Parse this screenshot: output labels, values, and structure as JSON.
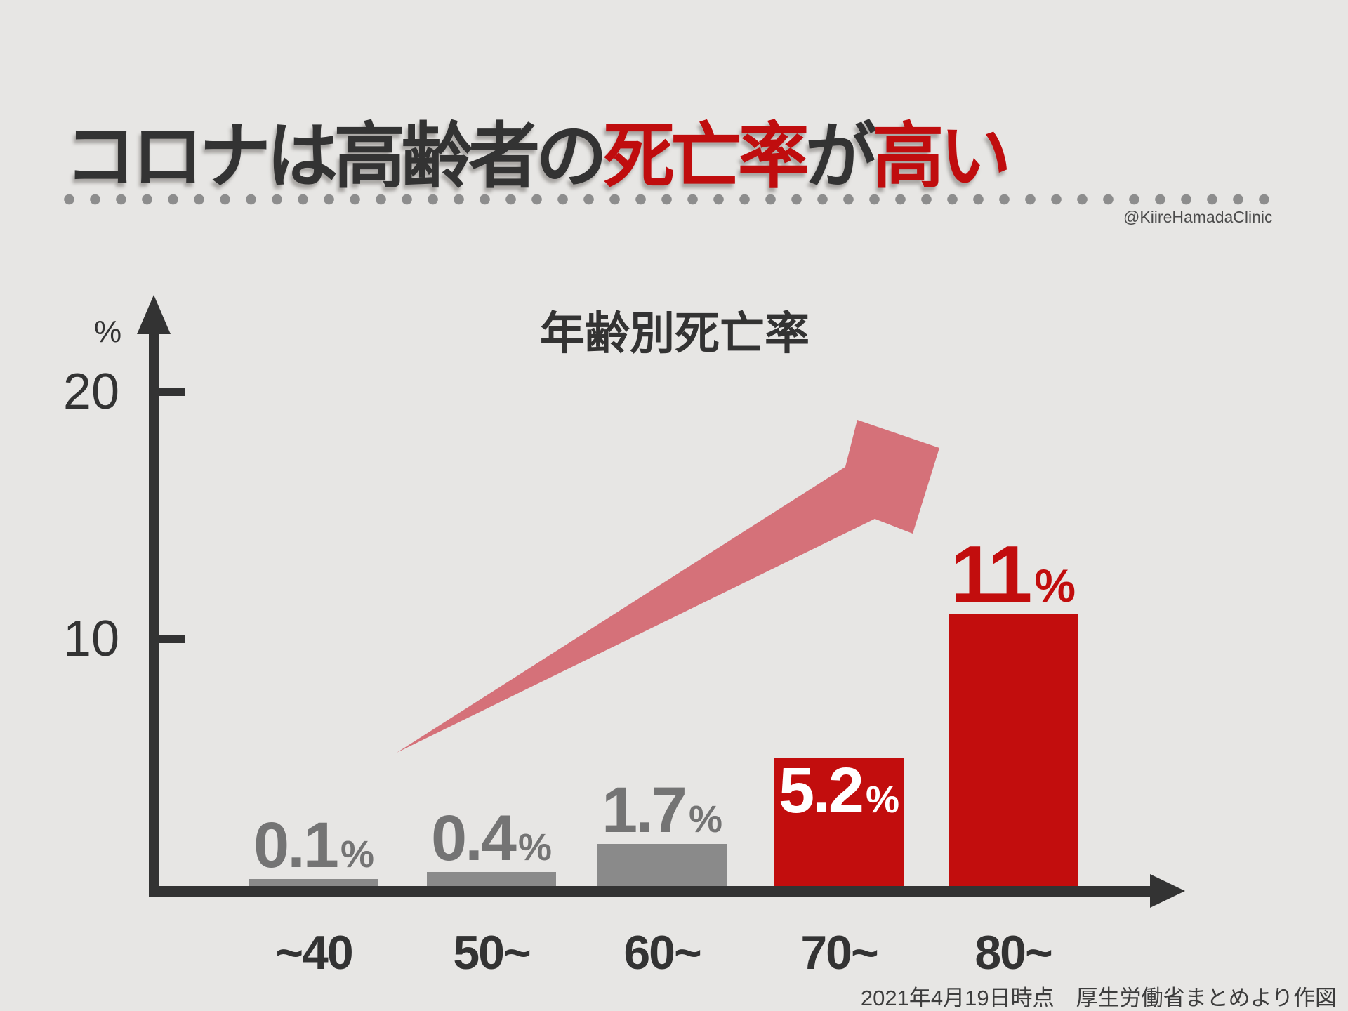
{
  "title": {
    "segments": [
      {
        "text": "コロナは",
        "color": "#333333"
      },
      {
        "text": "高齢者",
        "color": "#333333"
      },
      {
        "text": "の",
        "color": "#333333"
      },
      {
        "text": "死亡率",
        "color": "#c00d0e"
      },
      {
        "text": "が",
        "color": "#333333"
      },
      {
        "text": "高い",
        "color": "#c00d0e"
      }
    ]
  },
  "attribution": "@KiireHamadaClinic",
  "footer": "2021年4月19日時点　厚生労働省まとめより作図",
  "chart_data": {
    "type": "bar",
    "title": "年齢別死亡率",
    "xlabel": "",
    "ylabel": "%",
    "unit": "%",
    "categories": [
      "~40",
      "50~",
      "60~",
      "70~",
      "80~"
    ],
    "values": [
      0.1,
      0.4,
      1.7,
      5.2,
      11
    ],
    "value_labels": [
      "0.1",
      "0.4",
      "1.7",
      "5.2",
      "11"
    ],
    "bar_colors": [
      "#8a8a8a",
      "#8a8a8a",
      "#8a8a8a",
      "#c20d0d",
      "#c20d0d"
    ],
    "label_colors": [
      "#747474",
      "#747474",
      "#747474",
      "#ffffff",
      "#c20d0d"
    ],
    "label_placement": [
      "above",
      "above",
      "above",
      "inside",
      "above"
    ],
    "label_emphasis": [
      false,
      false,
      false,
      false,
      true
    ],
    "yticks": [
      10,
      20
    ],
    "ylim": [
      0,
      23
    ],
    "grid": false,
    "legend": "none",
    "annotation": "rising-trend-arrow",
    "colors": {
      "trend_arrow": "#d57179",
      "bar_gray": "#8a8a8a",
      "bar_red": "#c20d0d",
      "axis": "#333333",
      "background": "#e7e6e4"
    }
  }
}
